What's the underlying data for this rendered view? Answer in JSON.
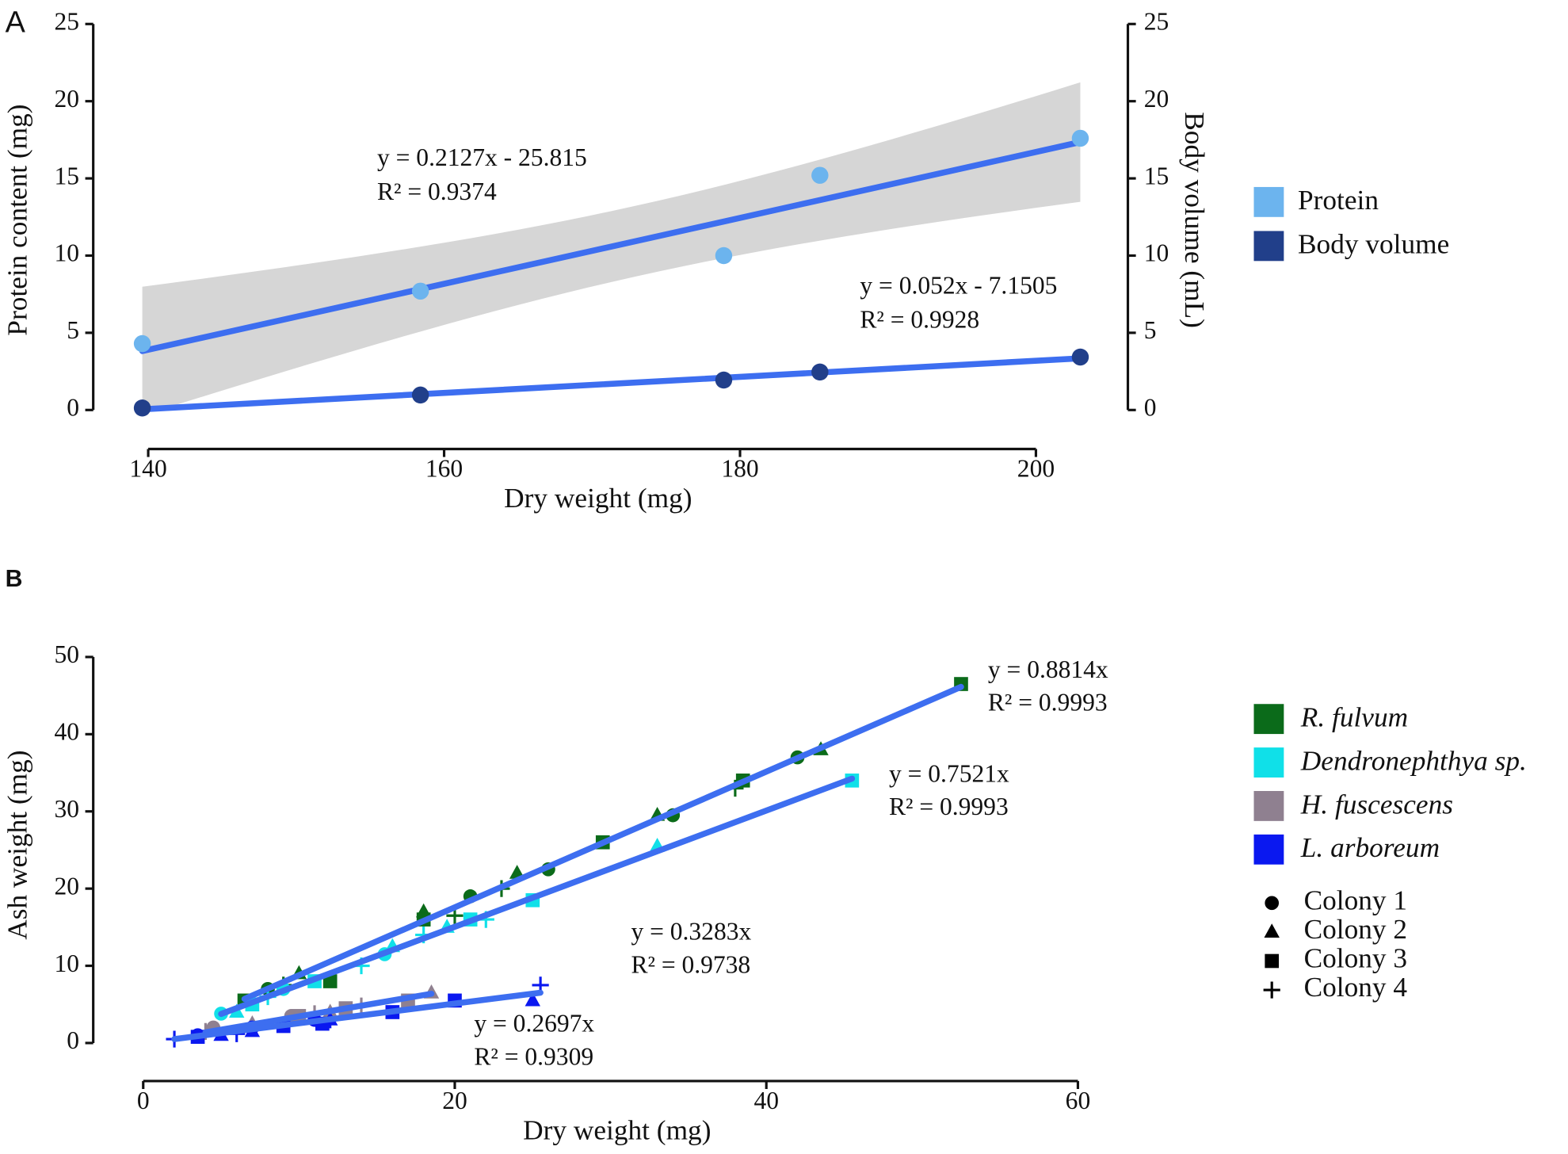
{
  "chart_data": [
    {
      "type": "scatter",
      "label": "A",
      "xlabel": "Dry weight (mg)",
      "ylabel": "Protein content (mg)",
      "y2label": "Body volume (mL)",
      "x": [
        139.6,
        158.4,
        178.9,
        185.4,
        203.0
      ],
      "xlim": [
        140,
        200
      ],
      "xticks": [
        140,
        160,
        180,
        200
      ],
      "ylim": [
        0,
        25
      ],
      "yticks": [
        0,
        5,
        10,
        15,
        20,
        25
      ],
      "y2lim": [
        0,
        25
      ],
      "y2ticks": [
        0,
        5,
        10,
        15,
        20,
        25
      ],
      "fit_color": "#3d6ef0",
      "confidence_band": true,
      "series": [
        {
          "name": "Protein",
          "color": "#6cb4ee",
          "values": [
            4.3,
            7.7,
            10.0,
            15.2,
            17.6
          ]
        },
        {
          "name": "Body volume",
          "color": "#213f8a",
          "axis": "y2",
          "values": [
            0.13,
            0.97,
            1.94,
            2.46,
            3.43
          ]
        }
      ],
      "annotations": [
        [
          "y = 0.2127x - 25.815",
          "R² = 0.9374"
        ],
        [
          "y = 0.052x - 7.1505",
          "R² = 0.9928"
        ]
      ]
    },
    {
      "type": "scatter",
      "label": "B",
      "xlabel": "Dry weight (mg)",
      "ylabel": "Ash weight (mg)",
      "xlim": [
        0,
        60
      ],
      "xticks": [
        0,
        20,
        40,
        60
      ],
      "ylim": [
        0,
        50
      ],
      "yticks": [
        0,
        10,
        20,
        30,
        40,
        50
      ],
      "fit_color": "#3d6ef0",
      "markers": [
        {
          "name": "Colony 1",
          "shape": "circle"
        },
        {
          "name": "Colony 2",
          "shape": "triangle"
        },
        {
          "name": "Colony 3",
          "shape": "square"
        },
        {
          "name": "Colony 4",
          "shape": "plus"
        }
      ],
      "series": [
        {
          "name": "R. fulvum",
          "color": "#0b6b1a",
          "groups": [
            {
              "x": [
                8,
                21,
                26,
                34,
                42
              ],
              "y": [
                7,
                19,
                22.5,
                29.5,
                37
              ]
            },
            {
              "x": [
                10,
                18,
                24,
                33,
                43.5
              ],
              "y": [
                9,
                17,
                22,
                29.5,
                38
              ]
            },
            {
              "x": [
                6.5,
                12,
                18,
                29.5,
                38.5,
                52.5
              ],
              "y": [
                5.5,
                8,
                16,
                26,
                34,
                46.5
              ]
            },
            {
              "x": [
                9,
                20,
                23,
                38
              ],
              "y": [
                7.5,
                16.5,
                20,
                33
              ]
            }
          ]
        },
        {
          "name": "Dendronephthya sp.",
          "color": "#10e0e8",
          "groups": [
            {
              "x": [
                5,
                9,
                15.5
              ],
              "y": [
                3.8,
                7,
                11.5
              ]
            },
            {
              "x": [
                6,
                16,
                19.5,
                33
              ],
              "y": [
                4,
                12.5,
                15,
                25.5
              ]
            },
            {
              "x": [
                7,
                11,
                21,
                25,
                45.5
              ],
              "y": [
                5,
                8,
                16,
                18.5,
                34
              ]
            },
            {
              "x": [
                8,
                14,
                18,
                22
              ],
              "y": [
                6,
                10,
                14,
                16
              ]
            }
          ]
        },
        {
          "name": "H. fuscescens",
          "color": "#8f8090",
          "groups": [
            {
              "x": [
                4.5,
                9.5
              ],
              "y": [
                2,
                3.5
              ]
            },
            {
              "x": [
                7,
                12,
                18.5
              ],
              "y": [
                2.5,
                4,
                6.5
              ]
            },
            {
              "x": [
                10,
                13,
                17
              ],
              "y": [
                3.5,
                4.5,
                5.5
              ]
            },
            {
              "x": [
                4,
                11,
                14
              ],
              "y": [
                1.5,
                3.8,
                4.8
              ]
            }
          ]
        },
        {
          "name": "L. arboreum",
          "color": "#0a18f0",
          "groups": [
            {
              "x": [
                3.5,
                7,
                11
              ],
              "y": [
                1,
                2,
                3
              ]
            },
            {
              "x": [
                5,
                7,
                12,
                25
              ],
              "y": [
                1,
                1.5,
                3,
                5.5
              ]
            },
            {
              "x": [
                3.5,
                9,
                11.5,
                16,
                20
              ],
              "y": [
                0.8,
                2.2,
                2.5,
                4,
                5.5
              ]
            },
            {
              "x": [
                2,
                6,
                12,
                25.5
              ],
              "y": [
                0.5,
                1.2,
                3,
                7.5
              ]
            }
          ]
        }
      ],
      "annotations": [
        [
          "y = 0.8814x",
          "R² = 0.9993"
        ],
        [
          "y = 0.7521x",
          "R² = 0.9993"
        ],
        [
          "y = 0.3283x",
          "R² = 0.9738"
        ],
        [
          "y = 0.2697x",
          "R² = 0.9309"
        ]
      ]
    }
  ]
}
